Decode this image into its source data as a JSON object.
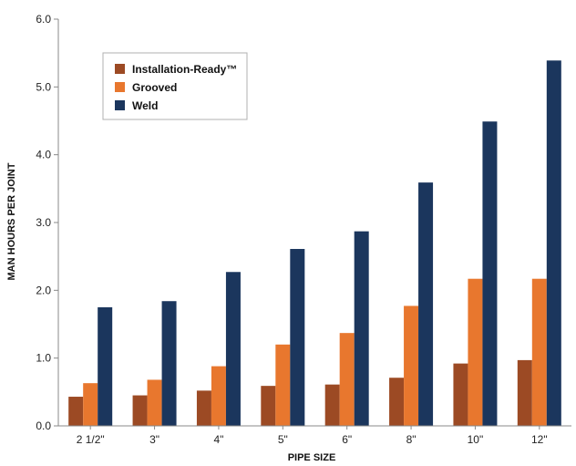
{
  "chart_data": {
    "type": "bar",
    "xlabel": "PIPE SIZE",
    "ylabel": "MAN HOURS PER JOINT",
    "ylim": [
      0,
      6.0
    ],
    "yticks": [
      "0.0",
      "1.0",
      "2.0",
      "3.0",
      "4.0",
      "5.0",
      "6.0"
    ],
    "categories": [
      "2 1/2\"",
      "3\"",
      "4\"",
      "5\"",
      "6\"",
      "8\"",
      "10\"",
      "12\""
    ],
    "series": [
      {
        "name": "Installation-Ready™",
        "color": "#9c4a24",
        "values": [
          0.43,
          0.45,
          0.52,
          0.59,
          0.61,
          0.71,
          0.92,
          0.97
        ]
      },
      {
        "name": "Grooved",
        "color": "#e8772e",
        "values": [
          0.63,
          0.68,
          0.88,
          1.2,
          1.37,
          1.77,
          2.17,
          2.17
        ]
      },
      {
        "name": "Weld",
        "color": "#1b365d",
        "values": [
          1.75,
          1.84,
          2.27,
          2.61,
          2.87,
          3.59,
          4.49,
          5.39
        ]
      }
    ],
    "grid": false,
    "legend": "top-left"
  }
}
